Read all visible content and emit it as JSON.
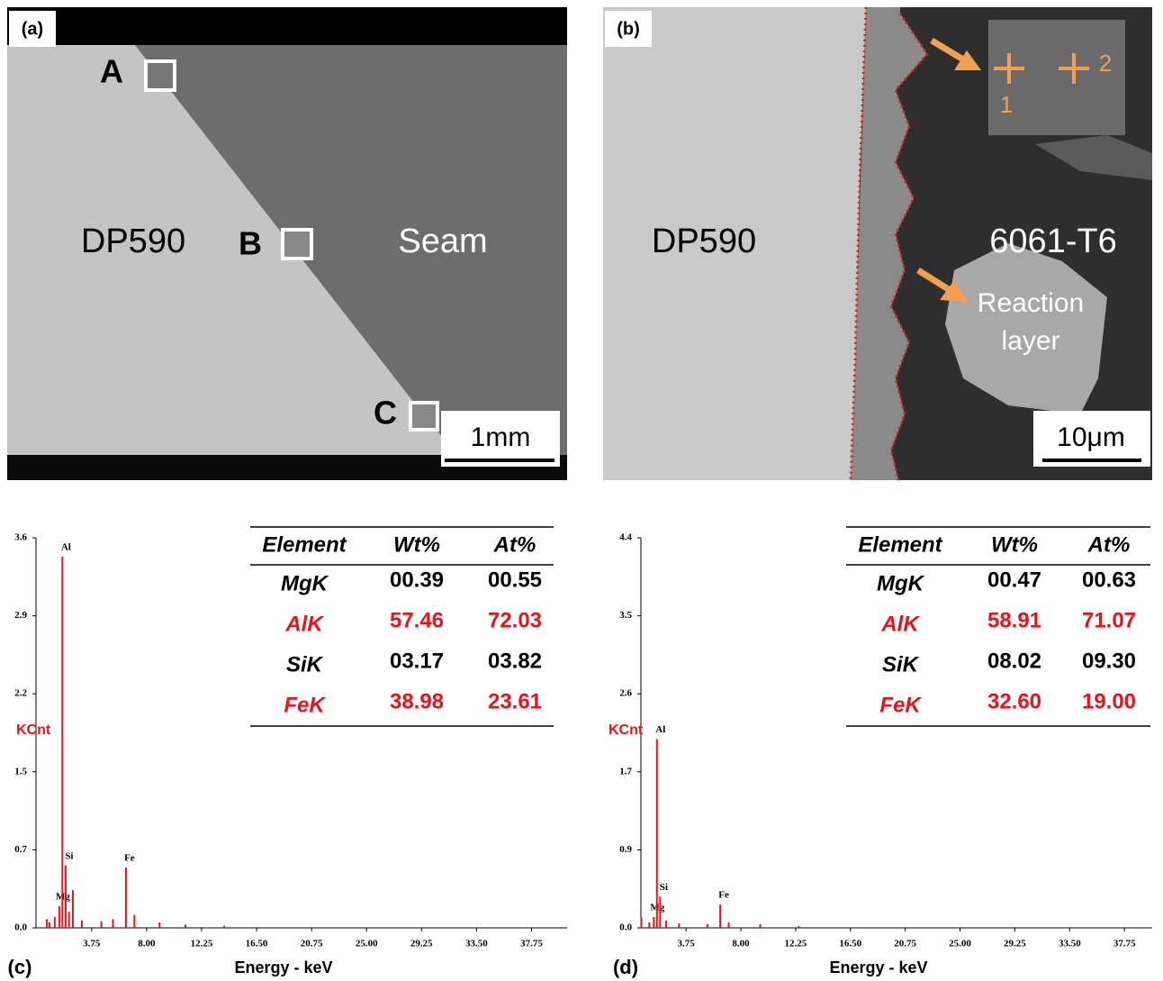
{
  "panels": [
    {
      "label": "(a)",
      "sites": [
        "A",
        "B",
        "C"
      ],
      "regions": [
        "DP590",
        "Seam"
      ],
      "scale_bar": "1mm"
    },
    {
      "label": "(b)",
      "regions": [
        "DP590",
        "6061-T6"
      ],
      "annotation": [
        "Reaction",
        "layer"
      ],
      "points": [
        "1",
        "2"
      ],
      "scale_bar": "10μm"
    }
  ],
  "chart_data": [
    {
      "type": "spectrum",
      "label": "(c)",
      "xlabel": "Energy - keV",
      "ylabel": "KCnt",
      "color": "#e8141b",
      "x": [
        0.28,
        0.5,
        0.9,
        1.25,
        1.49,
        1.74,
        2.0,
        2.3,
        3.0,
        4.5,
        5.4,
        6.4,
        7.06,
        9.0,
        11.0,
        14.0
      ],
      "values": [
        0.08,
        0.05,
        0.1,
        0.2,
        3.45,
        0.58,
        0.15,
        0.35,
        0.07,
        0.06,
        0.08,
        0.56,
        0.12,
        0.05,
        0.03,
        0.02
      ],
      "peak_labels": [
        null,
        null,
        null,
        "Mg",
        "Al",
        "Si",
        null,
        null,
        null,
        null,
        null,
        "Fe",
        null,
        null,
        null,
        null
      ],
      "xlim": [
        -0.55,
        40.5
      ],
      "xticks": [
        3.75,
        {
          "value": 8,
          "label": "8.00"
        },
        12.25,
        {
          "value": 16.5,
          "label": "16.50"
        },
        20.75,
        {
          "value": 25,
          "label": "25.00"
        },
        29.25,
        {
          "value": 33.5,
          "label": "33.50"
        },
        37.75
      ],
      "ylim": [
        0,
        3.625
      ],
      "yticks": [
        {
          "value": 0,
          "label": "0.0"
        },
        {
          "value": 0.725,
          "label": "0.7"
        },
        {
          "value": 1.45,
          "label": "1.5"
        },
        {
          "value": 2.175,
          "label": "2.2"
        },
        2.9,
        {
          "value": 3.625,
          "label": "3.6"
        }
      ],
      "table": {
        "columns": [
          "Element",
          "Wt%",
          "At%"
        ],
        "rows": [
          [
            "MgK",
            "00.39",
            "00.55"
          ],
          [
            "AlK",
            "57.46",
            "72.03"
          ],
          [
            "SiK",
            "03.17",
            "03.82"
          ],
          [
            "FeK",
            "38.98",
            "23.61"
          ]
        ],
        "highlight_rows": [
          1,
          3
        ],
        "highlight_color": "#e8141b"
      }
    },
    {
      "type": "spectrum",
      "label": "(d)",
      "xlabel": "Energy - keV",
      "ylabel": "KCnt",
      "color": "#e8141b",
      "x": [
        0.28,
        0.9,
        1.25,
        1.49,
        1.74,
        2.2,
        3.2,
        5.4,
        6.4,
        7.06,
        9.5,
        12.5
      ],
      "values": [
        0.12,
        0.06,
        0.12,
        2.11,
        0.35,
        0.08,
        0.05,
        0.04,
        0.26,
        0.06,
        0.04,
        0.02
      ],
      "peak_labels": [
        null,
        null,
        "Mg",
        "Al",
        "Si",
        null,
        null,
        null,
        "Fe",
        null,
        null,
        null
      ],
      "xlim": [
        0.25,
        39.9
      ],
      "xticks": [
        3.75,
        {
          "value": 8,
          "label": "8.00"
        },
        12.25,
        {
          "value": 16.5,
          "label": "16.50"
        },
        20.75,
        {
          "value": 25,
          "label": "25.00"
        },
        29.25,
        {
          "value": 33.5,
          "label": "33.50"
        },
        37.75
      ],
      "ylim": [
        0,
        4.36
      ],
      "yticks": [
        {
          "value": 0,
          "label": "0.0"
        },
        {
          "value": 0.872,
          "label": "0.9"
        },
        {
          "value": 1.744,
          "label": "1.7"
        },
        {
          "value": 2.616,
          "label": "2.6"
        },
        {
          "value": 3.488,
          "label": "3.5"
        },
        {
          "value": 4.36,
          "label": "4.4"
        }
      ],
      "table": {
        "columns": [
          "Element",
          "Wt%",
          "At%"
        ],
        "rows": [
          [
            "MgK",
            "00.47",
            "00.63"
          ],
          [
            "AlK",
            "58.91",
            "71.07"
          ],
          [
            "SiK",
            "08.02",
            "09.30"
          ],
          [
            "FeK",
            "32.60",
            "19.00"
          ]
        ],
        "highlight_rows": [
          1,
          3
        ],
        "highlight_color": "#e8141b"
      }
    }
  ]
}
